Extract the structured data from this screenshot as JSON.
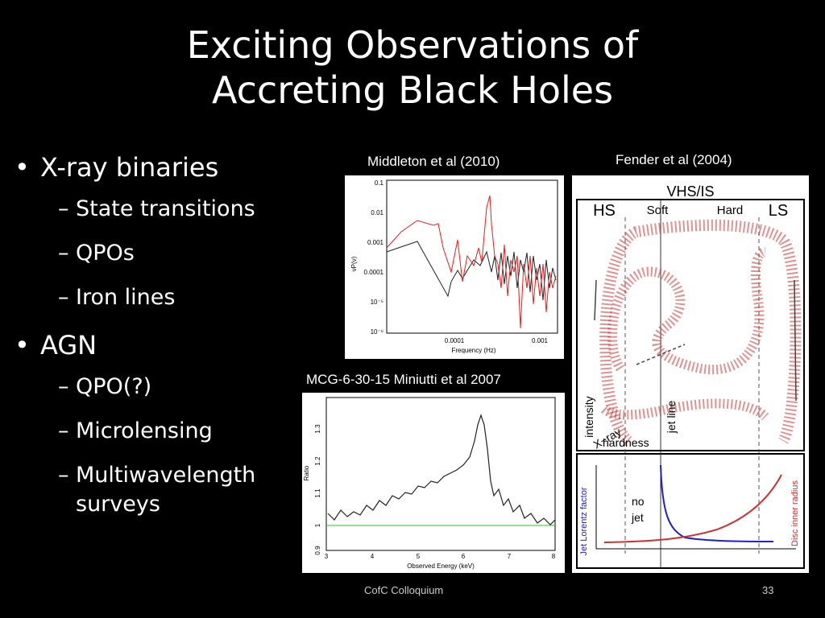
{
  "slide": {
    "title_line1": "Exciting Observations of",
    "title_line2": "Accreting Black Holes",
    "bullets": [
      {
        "label": "X-ray binaries",
        "subs": [
          "State transitions",
          "QPOs",
          "Iron lines"
        ]
      },
      {
        "label": "AGN",
        "subs": [
          "QPO(?)",
          "Microlensing",
          "Multiwavelength surveys"
        ]
      }
    ],
    "footer": {
      "center": "CofC Colloquium",
      "page": "33"
    }
  },
  "figures": {
    "middleton": {
      "caption": "Middleton et al (2010)",
      "ylabel": "νP(ν)",
      "xlabel": "Frequency (Hz)",
      "yticks": [
        "0.1",
        "0.01",
        "0.001",
        "0.0001",
        "10⁻⁵",
        "10⁻⁶"
      ],
      "xticks": [
        "0.0001",
        "0.001"
      ],
      "colors": {
        "red": "#e02020",
        "black": "#222222"
      }
    },
    "fender": {
      "caption": "Fender et al (2004)",
      "top_label": "VHS/IS",
      "hs": "HS",
      "ls": "LS",
      "soft": "Soft",
      "hard": "Hard",
      "intensity": "intensity",
      "xray": "X−ray",
      "hardness": "hardness",
      "jetline": "jet line",
      "nojet1": "no",
      "nojet2": "jet",
      "jet_lorentz": "Jet Lorentz factor",
      "disc_radius": "Disc inner radius",
      "colors": {
        "blue": "#2020d0",
        "red": "#d03030",
        "scatter": "#c83838"
      }
    },
    "miniutti": {
      "caption": "MCG-6-30-15 Miniutti et al 2007",
      "ylabel": "Ratio",
      "xlabel": "Observed Energy (keV)",
      "xticks": [
        "3",
        "4",
        "5",
        "6",
        "7",
        "8"
      ],
      "yticks": [
        "0.9",
        "1",
        "1.1",
        "1.2",
        "1.3"
      ],
      "colors": {
        "baseline": "#2ec02e",
        "data": "#222222"
      }
    }
  }
}
